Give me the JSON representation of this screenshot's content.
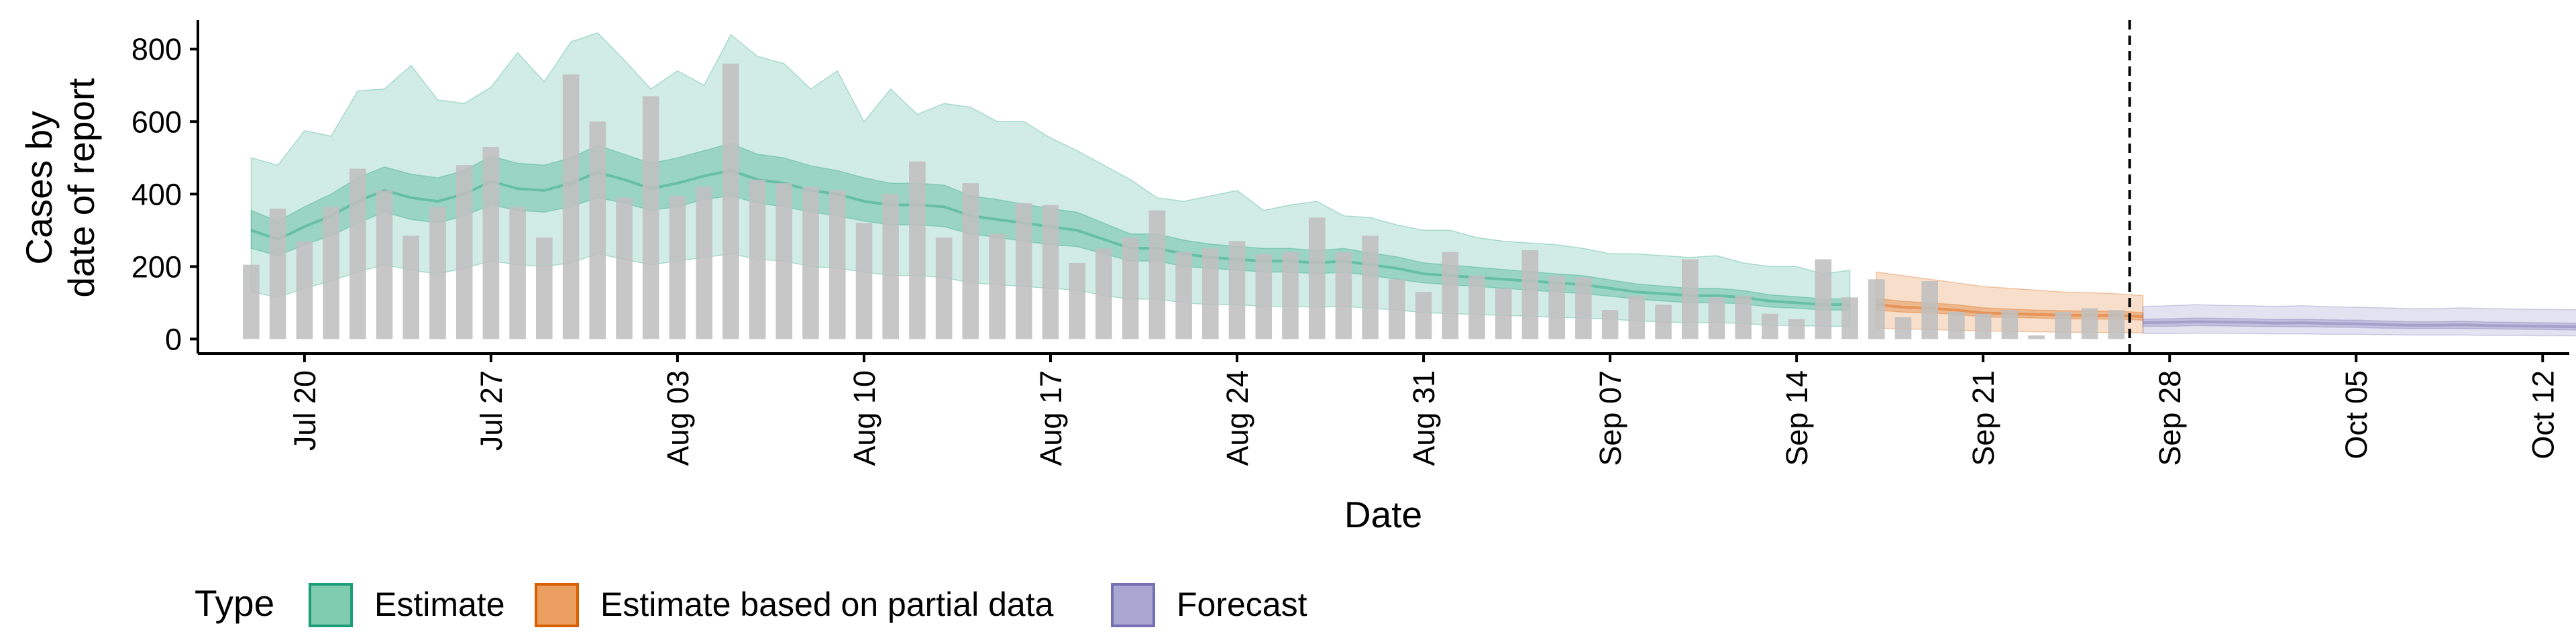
{
  "chart_data": {
    "type": "bar",
    "xlabel": "Date",
    "ylabel": [
      "Cases by",
      "date of report"
    ],
    "ylim": [
      -40,
      880
    ],
    "yticks": [
      0,
      200,
      400,
      600,
      800
    ],
    "date_start": "Jul 17",
    "x_tick_labels": [
      "Jul 20",
      "Jul 27",
      "Aug 03",
      "Aug 10",
      "Aug 17",
      "Aug 24",
      "Aug 31",
      "Sep 07",
      "Sep 14",
      "Sep 21",
      "Sep 28",
      "Oct 05",
      "Oct 12"
    ],
    "x_tick_day": [
      3,
      10,
      17,
      24,
      31,
      38,
      45,
      52,
      59,
      66,
      73,
      80,
      87
    ],
    "xlim_day": [
      -1,
      88
    ],
    "vline_day": 71.5,
    "legend": {
      "title": "Type",
      "position": "bottom",
      "entries": [
        {
          "label": "Estimate",
          "fill": "#7fcbb0",
          "stroke": "#1b9e77"
        },
        {
          "label": "Estimate based on partial data",
          "fill": "#eba062",
          "stroke": "#d95f02"
        },
        {
          "label": "Forecast",
          "fill": "#aaa7d2",
          "stroke": "#7570b3"
        }
      ]
    },
    "colors": {
      "bars": "#bfbfbf",
      "estimate": "#1b9e77",
      "partial": "#d95f02",
      "forecast": "#7570b3",
      "vline": "#000000"
    },
    "reported_cases": {
      "start_day": 1,
      "values": [
        205,
        360,
        270,
        365,
        470,
        410,
        285,
        365,
        480,
        530,
        365,
        280,
        730,
        600,
        390,
        670,
        395,
        420,
        760,
        440,
        430,
        420,
        410,
        320,
        400,
        490,
        280,
        430,
        290,
        375,
        370,
        210,
        250,
        280,
        355,
        240,
        250,
        270,
        235,
        240,
        335,
        240,
        285,
        165,
        130,
        240,
        175,
        140,
        245,
        175,
        170,
        80,
        120,
        95,
        220,
        115,
        120,
        70,
        55,
        220,
        115,
        165,
        60,
        160,
        75,
        70,
        80,
        10,
        75,
        85,
        80
      ]
    },
    "estimate": {
      "start_day": 1,
      "median": [
        300,
        275,
        310,
        340,
        380,
        410,
        390,
        380,
        400,
        435,
        415,
        410,
        430,
        460,
        440,
        415,
        430,
        450,
        465,
        440,
        430,
        410,
        400,
        380,
        370,
        370,
        365,
        340,
        330,
        320,
        310,
        300,
        275,
        250,
        250,
        235,
        225,
        220,
        215,
        215,
        210,
        215,
        205,
        195,
        180,
        175,
        170,
        165,
        160,
        155,
        150,
        140,
        130,
        125,
        120,
        120,
        115,
        105,
        100,
        95,
        95
      ],
      "lower_50": [
        250,
        230,
        260,
        285,
        320,
        350,
        330,
        320,
        340,
        370,
        355,
        350,
        365,
        390,
        375,
        355,
        365,
        385,
        395,
        375,
        365,
        350,
        340,
        325,
        315,
        315,
        310,
        290,
        280,
        270,
        260,
        255,
        235,
        215,
        215,
        200,
        195,
        190,
        185,
        185,
        180,
        185,
        175,
        165,
        155,
        150,
        145,
        140,
        135,
        130,
        125,
        118,
        110,
        105,
        100,
        100,
        97,
        88,
        85,
        80,
        80
      ],
      "upper_50": [
        355,
        325,
        365,
        400,
        445,
        475,
        455,
        445,
        465,
        505,
        485,
        480,
        500,
        535,
        510,
        485,
        500,
        520,
        540,
        510,
        500,
        478,
        465,
        445,
        430,
        430,
        425,
        395,
        385,
        372,
        360,
        350,
        320,
        290,
        290,
        273,
        262,
        256,
        250,
        250,
        244,
        250,
        238,
        227,
        210,
        204,
        198,
        192,
        186,
        180,
        175,
        163,
        152,
        146,
        140,
        140,
        134,
        122,
        117,
        111,
        111
      ],
      "lower_90": [
        130,
        115,
        140,
        160,
        185,
        205,
        190,
        180,
        195,
        215,
        205,
        200,
        210,
        235,
        220,
        205,
        215,
        225,
        235,
        220,
        215,
        200,
        195,
        185,
        175,
        175,
        170,
        155,
        150,
        145,
        140,
        135,
        120,
        110,
        110,
        100,
        95,
        95,
        90,
        90,
        88,
        90,
        85,
        80,
        73,
        70,
        68,
        65,
        63,
        60,
        58,
        55,
        50,
        47,
        45,
        45,
        43,
        38,
        37,
        35,
        35
      ],
      "upper_90": [
        500,
        480,
        575,
        560,
        685,
        690,
        755,
        660,
        650,
        695,
        790,
        710,
        820,
        845,
        770,
        690,
        740,
        700,
        840,
        780,
        760,
        690,
        740,
        600,
        690,
        620,
        650,
        640,
        600,
        600,
        555,
        520,
        480,
        440,
        390,
        380,
        395,
        410,
        355,
        370,
        380,
        340,
        335,
        315,
        300,
        300,
        280,
        270,
        265,
        260,
        250,
        235,
        235,
        230,
        225,
        230,
        210,
        200,
        200,
        180,
        190
      ]
    },
    "partial": {
      "start_day": 62,
      "median": [
        95,
        88,
        85,
        80,
        72,
        70,
        68,
        66,
        65,
        65,
        62
      ],
      "lower_50": [
        80,
        74,
        72,
        68,
        61,
        60,
        58,
        56,
        55,
        55,
        52
      ],
      "upper_50": [
        112,
        104,
        100,
        95,
        86,
        83,
        80,
        78,
        77,
        77,
        73
      ],
      "lower_90": [
        30,
        28,
        26,
        24,
        22,
        21,
        20,
        19,
        18,
        18,
        17
      ],
      "upper_90": [
        185,
        175,
        165,
        155,
        145,
        140,
        135,
        130,
        128,
        125,
        120
      ]
    },
    "forecast": {
      "start_day": 72,
      "median": [
        45,
        46,
        48,
        47,
        46,
        44,
        45,
        43,
        42,
        40,
        38,
        38,
        39,
        37,
        36,
        35,
        34,
        33,
        32
      ],
      "lower_50": [
        35,
        35,
        37,
        36,
        35,
        34,
        34,
        33,
        32,
        30,
        29,
        29,
        29,
        28,
        27,
        26,
        25,
        24,
        23
      ],
      "upper_50": [
        55,
        56,
        58,
        57,
        56,
        54,
        55,
        53,
        52,
        50,
        48,
        48,
        49,
        47,
        46,
        45,
        44,
        43,
        42
      ],
      "lower_90": [
        15,
        15,
        16,
        16,
        15,
        14,
        14,
        13,
        13,
        12,
        11,
        11,
        11,
        10,
        10,
        9,
        9,
        8,
        8
      ],
      "upper_90": [
        90,
        92,
        95,
        93,
        92,
        90,
        92,
        89,
        88,
        86,
        84,
        84,
        86,
        84,
        83,
        82,
        81,
        80,
        79
      ]
    }
  }
}
